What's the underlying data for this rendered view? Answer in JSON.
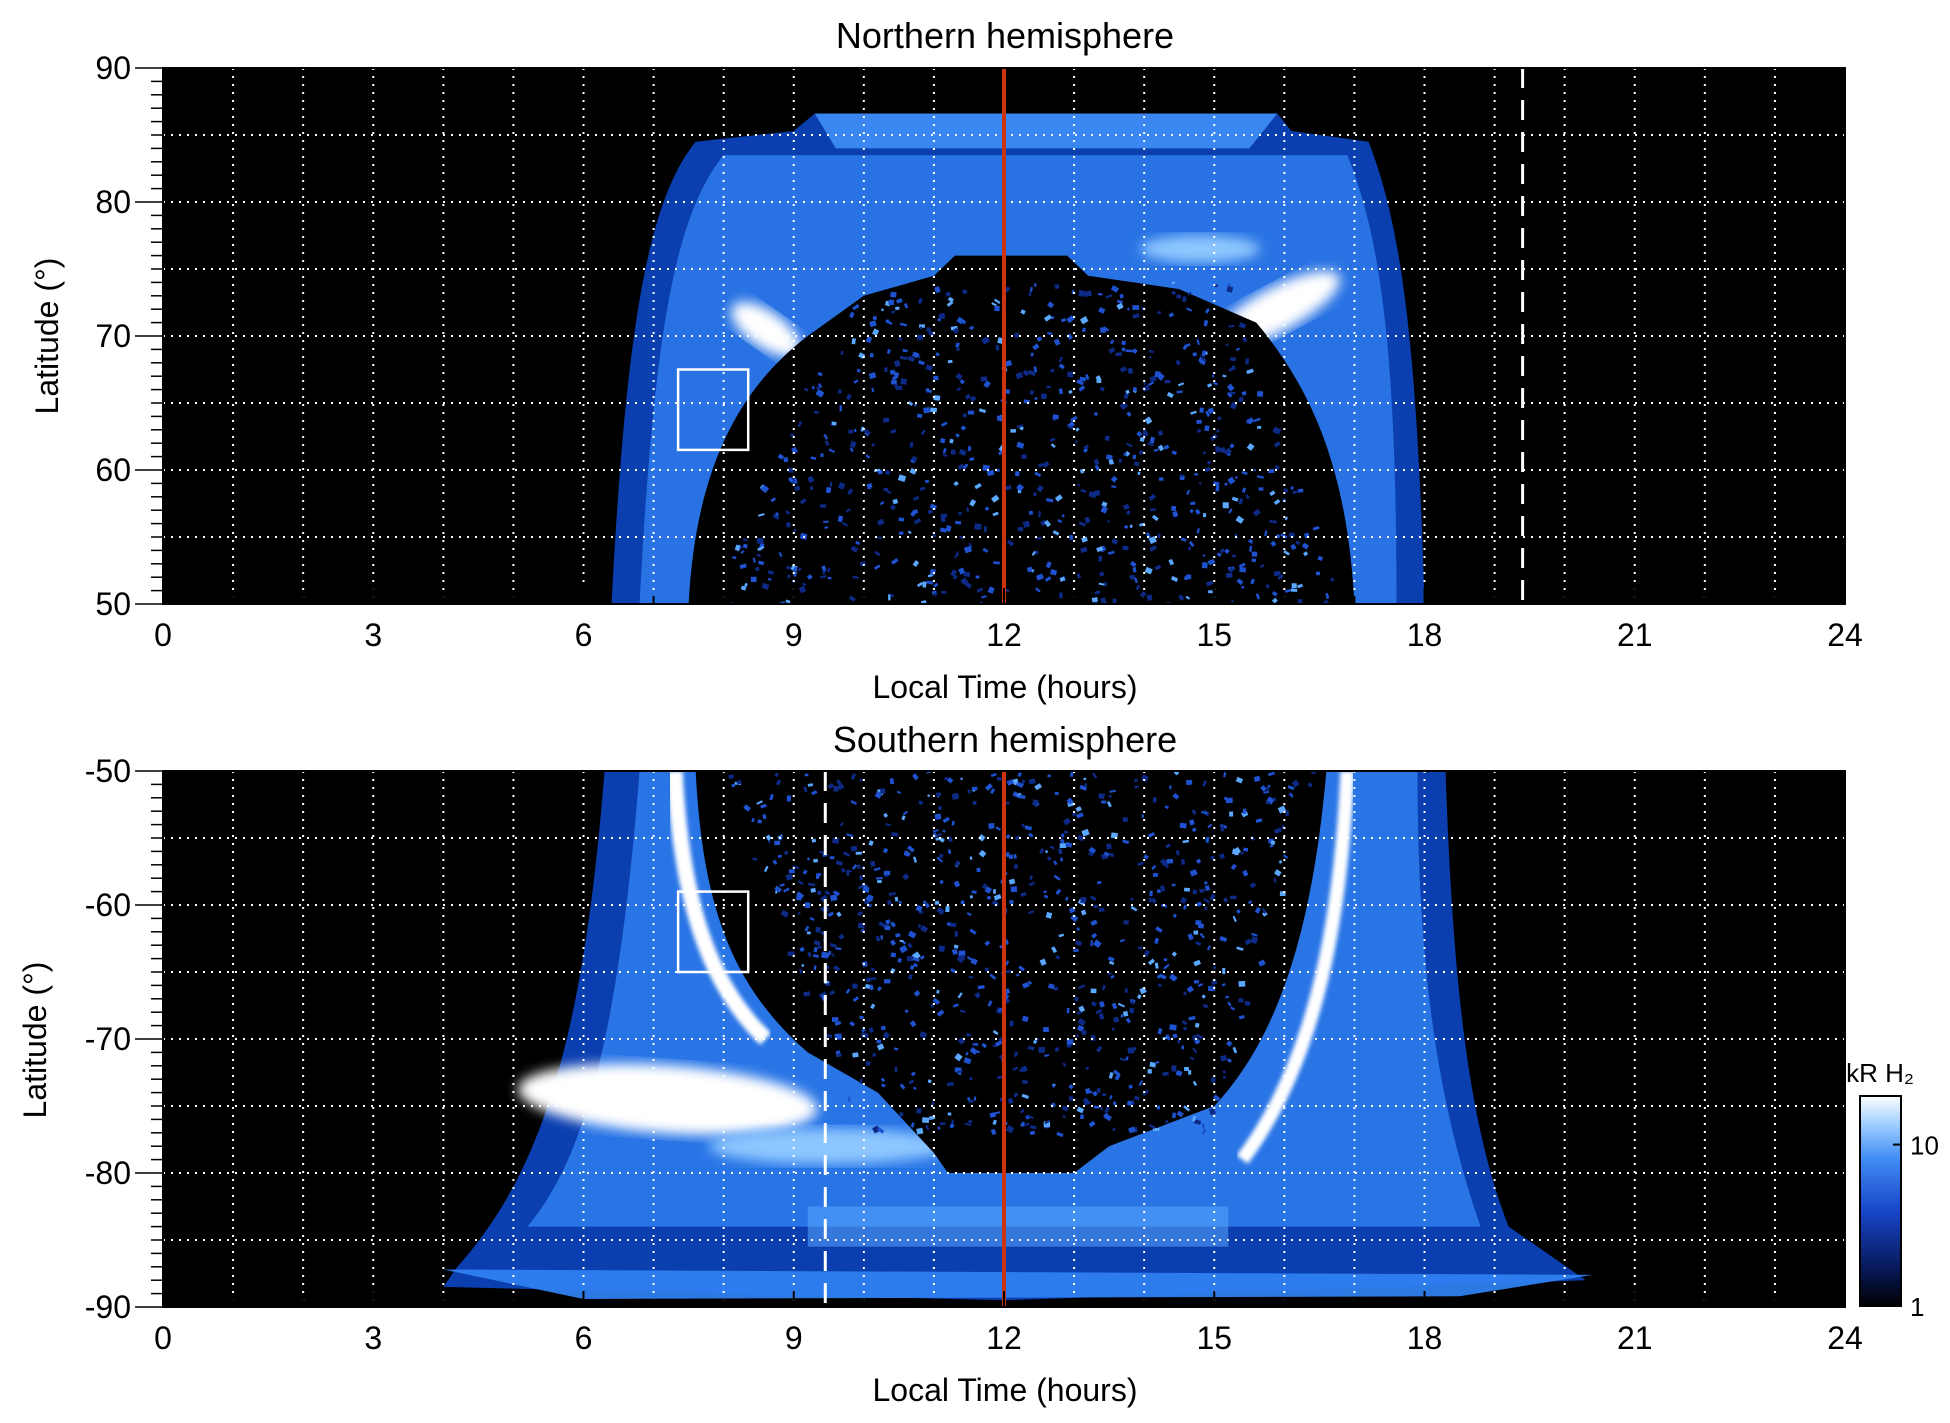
{
  "chart_data": [
    {
      "type": "heatmap",
      "title": "Northern hemisphere",
      "xlabel": "Local Time (hours)",
      "ylabel": "Latitude (°)",
      "xlim": [
        0,
        24
      ],
      "ylim": [
        50,
        90
      ],
      "xticks": [
        "0",
        "3",
        "6",
        "9",
        "12",
        "15",
        "18",
        "21",
        "24"
      ],
      "yticks": [
        "50",
        "60",
        "70",
        "80",
        "90"
      ],
      "grid": true,
      "grid_dotted_x_every": 1,
      "grid_dotted_y_every": 5,
      "red_line_x": 12,
      "dashed_line_x": 19.4,
      "box": {
        "x": [
          7.35,
          8.35
        ],
        "y": [
          61.5,
          67.5
        ]
      },
      "emission_region": {
        "outer_lt_at_50": [
          6.4,
          18.0
        ],
        "outer_lt_at_85": [
          7.6,
          17.0
        ],
        "polar_cap_top_lat": 86.5,
        "inner_dark_region_lt_at_50": [
          7.5,
          17.0
        ],
        "inner_dark_region_top_lat": 76
      }
    },
    {
      "type": "heatmap",
      "title": "Southern hemisphere",
      "xlabel": "Local Time (hours)",
      "ylabel": "Latitude (°)",
      "xlim": [
        0,
        24
      ],
      "ylim": [
        -90,
        -50
      ],
      "xticks": [
        "0",
        "3",
        "6",
        "9",
        "12",
        "15",
        "18",
        "21",
        "24"
      ],
      "yticks": [
        "-50",
        "-60",
        "-70",
        "-80",
        "-90"
      ],
      "grid": true,
      "grid_dotted_x_every": 1,
      "grid_dotted_y_every": 5,
      "red_line_x": 12,
      "dashed_line_x": 9.45,
      "box": {
        "x": [
          7.35,
          8.35
        ],
        "y": [
          -65,
          -59
        ]
      },
      "emission_region": {
        "outer_lt_at_minus50": [
          6.3,
          18.3
        ],
        "outer_lt_at_minus88": [
          4.2,
          20.3
        ],
        "inner_dark_region_lt_at_minus50": [
          7.4,
          16.6
        ],
        "inner_dark_region_bottom_lat": -80
      }
    }
  ],
  "colorbar": {
    "label": "kR H₂",
    "scale": "log",
    "range": [
      1,
      20
    ],
    "ticks": [
      "10",
      "1"
    ],
    "colors": [
      "#000000",
      "#0a1f6e",
      "#1d4fd8",
      "#4a9bff",
      "#cfe8ff",
      "#ffffff"
    ]
  },
  "colors": {
    "background_plot": "#000000",
    "aurora_dim": "#0b3fb0",
    "aurora_mid": "#2f7ff0",
    "aurora_bright": "#8ec7ff",
    "aurora_peak": "#ffffff",
    "red_line": "#cc3311",
    "grid": "#ffffff"
  }
}
